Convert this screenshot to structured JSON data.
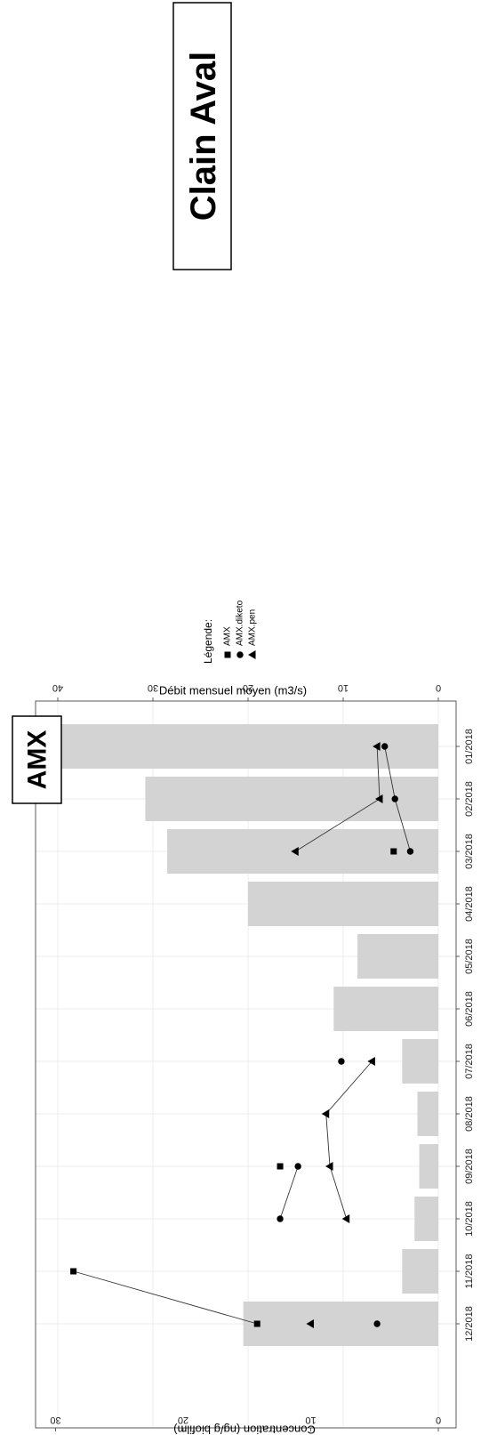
{
  "station_title": "Clain Aval",
  "colors": {
    "bar": "#d3d3d3",
    "grid": "#e6e6e6",
    "marker": "#000000",
    "line": "#333333"
  },
  "chart_data": {
    "type": "bar",
    "panel_label": "AMX",
    "orientation": "rotated-90-clockwise",
    "categories": [
      "01/2018",
      "02/2018",
      "03/2018",
      "04/2018",
      "05/2018",
      "06/2018",
      "07/2018",
      "08/2018",
      "09/2018",
      "10/2018",
      "11/2018",
      "12/2018"
    ],
    "flow_axis": {
      "label": "Débit mensuel moyen (m3/s)",
      "range": [
        0,
        42
      ],
      "ticks": [
        0,
        10,
        20,
        30,
        40
      ],
      "values": [
        40.2,
        30.8,
        28.5,
        20,
        8.5,
        11,
        3.8,
        2.2,
        2,
        2.5,
        3.8,
        20.5
      ]
    },
    "concentration_axis": {
      "label": "Concentration (ng/g biofilm)",
      "range": [
        0,
        31.2
      ],
      "ticks": [
        0,
        10,
        20,
        30
      ]
    },
    "legend": {
      "title": "Légende:",
      "entries": [
        {
          "name": "AMX",
          "shape": "square"
        },
        {
          "name": "AMX.diketo",
          "shape": "circle"
        },
        {
          "name": "AMX.pen",
          "shape": "triangle"
        }
      ]
    },
    "series": [
      {
        "name": "AMX",
        "shape": "square",
        "values": [
          null,
          null,
          3.5,
          null,
          null,
          null,
          null,
          null,
          12.4,
          null,
          28.6,
          14.2
        ]
      },
      {
        "name": "AMX.diketo",
        "shape": "circle",
        "values": [
          4.2,
          3.4,
          2.2,
          null,
          null,
          null,
          7.6,
          null,
          11,
          12.4,
          null,
          4.8
        ]
      },
      {
        "name": "AMX.pen",
        "shape": "triangle",
        "values": [
          4.8,
          4.6,
          11.2,
          null,
          null,
          null,
          5.2,
          8.8,
          8.5,
          7.2,
          null,
          10
        ]
      }
    ],
    "grid": true,
    "legend_position": "top"
  }
}
